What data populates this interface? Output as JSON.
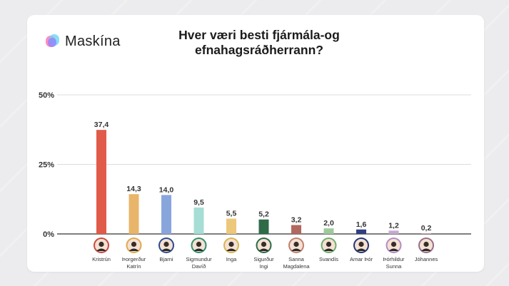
{
  "brand": {
    "name": "Maskína",
    "icon": "maskina-logo-icon",
    "colors": [
      "#ff6fb0",
      "#5fd0f0",
      "#8a7cff"
    ]
  },
  "title": "Hver væri besti fjármála-og efnahagsráðherrann?",
  "chart_data": {
    "type": "bar",
    "title": "Hver væri besti fjármála-og efnahagsráðherrann?",
    "xlabel": "",
    "ylabel": "",
    "ylim": [
      0,
      50
    ],
    "yticks": [
      "0%",
      "25%",
      "50%"
    ],
    "ytick_values": [
      0,
      25,
      50
    ],
    "grid": true,
    "categories": [
      [
        "Kristrún"
      ],
      [
        "Þorgerður",
        "Katrín"
      ],
      [
        "Bjarni"
      ],
      [
        "Sigmundur",
        "Davíð"
      ],
      [
        "Inga"
      ],
      [
        "Sigurður",
        "Ingi"
      ],
      [
        "Sanna",
        "Magdalena"
      ],
      [
        "Svandís"
      ],
      [
        "Arnar Þór"
      ],
      [
        "Þórhildur",
        "Sunna"
      ],
      [
        "Jóhannes"
      ]
    ],
    "values": [
      37.4,
      14.3,
      14.0,
      9.5,
      5.5,
      5.2,
      3.2,
      2.0,
      1.6,
      1.2,
      0.2
    ],
    "value_labels": [
      "37,4",
      "14,3",
      "14,0",
      "9,5",
      "5,5",
      "5,2",
      "3,2",
      "2,0",
      "1,6",
      "1,2",
      "0,2"
    ],
    "colors": [
      "#e15b4b",
      "#e8b56a",
      "#89a6dc",
      "#a6ddd5",
      "#ecc97a",
      "#2f6b48",
      "#b0685f",
      "#9fc99b",
      "#2f3f7f",
      "#c8a9d2",
      "#c7a3b3"
    ],
    "avatar_colors": [
      "#c94a3e",
      "#e0a94e",
      "#2e4a8f",
      "#2f8f6c",
      "#d9b44e",
      "#2c6a45",
      "#c08070",
      "#6fae6b",
      "#233572",
      "#b68bc4",
      "#9a6c88"
    ]
  }
}
